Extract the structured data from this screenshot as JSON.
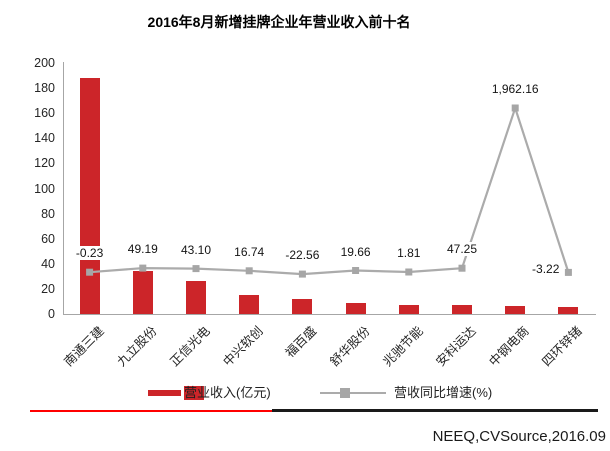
{
  "title": "2016年8月新增挂牌企业年营业收入前十名",
  "source": "NEEQ,CVSource,2016.09",
  "colors": {
    "bar": "#CC2529",
    "line": "#ABABAB",
    "marker": "#A6A6A6",
    "axis": "#A6A6A6",
    "footer_red": "#FF0000",
    "footer_black": "#1A1A1A"
  },
  "legend": {
    "bar_label": "营业收入(亿元)",
    "line_label": "营收同比增速(%)"
  },
  "chart_data": {
    "type": "bar",
    "subtype": "bar-line-combo",
    "title": "2016年8月新增挂牌企业年营业收入前十名",
    "categories": [
      "南通三建",
      "九立股份",
      "正信光电",
      "中兴软创",
      "福百盛",
      "舒华股份",
      "兆驰节能",
      "安科运达",
      "中钢电商",
      "四环锌锗"
    ],
    "series": [
      {
        "name": "营业收入(亿元)",
        "type": "bar",
        "axis": "left",
        "values": [
          188,
          34,
          26,
          15.2,
          12,
          8.5,
          7.2,
          6.8,
          6.5,
          5.6
        ]
      },
      {
        "name": "营收同比增速(%)",
        "type": "line",
        "axis": "right-hidden",
        "values": [
          -0.23,
          49.19,
          43.1,
          16.74,
          -22.56,
          19.66,
          1.81,
          47.25,
          1962.16,
          -3.22
        ],
        "labels": [
          "-0.23",
          "49.19",
          "43.10",
          "16.74",
          "-22.56",
          "19.66",
          "1.81",
          "47.25",
          "1,962.16",
          "-3.22"
        ],
        "label_sides": [
          "above",
          "above",
          "above",
          "above",
          "above",
          "above",
          "above",
          "above",
          "above",
          "left"
        ]
      }
    ],
    "left_axis": {
      "min": 0,
      "max": 200,
      "step": 20,
      "ticks": [
        "0",
        "20",
        "40",
        "60",
        "80",
        "100",
        "120",
        "140",
        "160",
        "180",
        "200"
      ]
    },
    "right_axis": {
      "hidden": true,
      "min": -500,
      "max": 2500
    },
    "xlabel": "",
    "ylabel": "",
    "grid": false,
    "legend_position": "bottom"
  }
}
